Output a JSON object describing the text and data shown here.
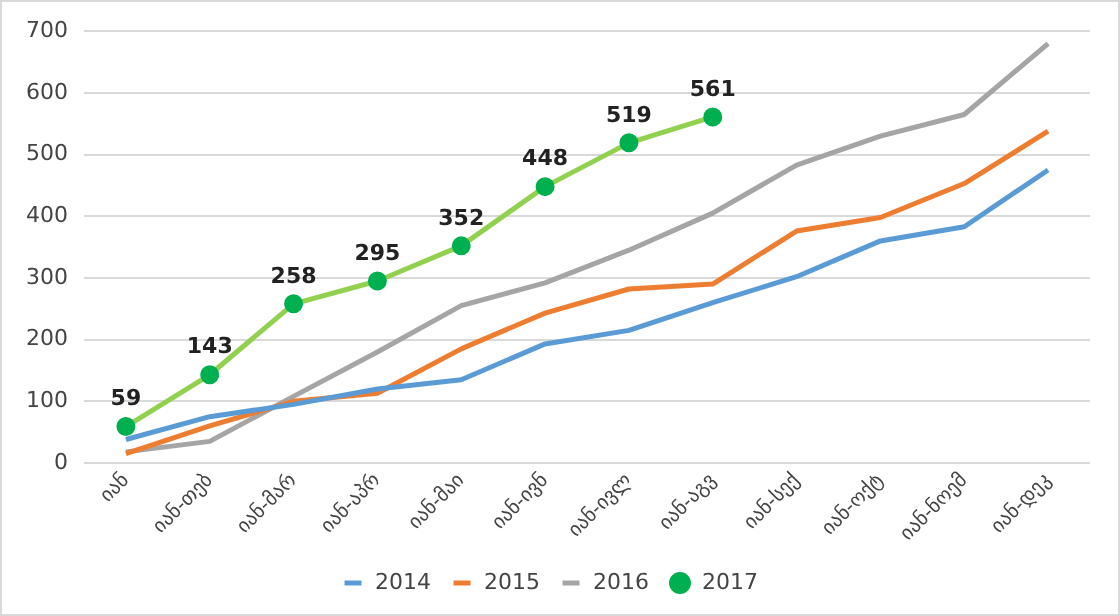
{
  "chart_data": {
    "type": "line",
    "categories": [
      "იან",
      "იან-თებ",
      "იან-მარ",
      "იან-აპრ",
      "იან-მაი",
      "იან-ივნ",
      "იან-ივლ",
      "იან-აგვ",
      "იან-სექ",
      "იან-ოქტ",
      "იან-ნოემ",
      "იან-დეკ"
    ],
    "series": [
      {
        "name": "2014",
        "color": "#5b9bd5",
        "values": [
          38,
          75,
          95,
          120,
          135,
          193,
          215,
          260,
          302,
          360,
          383,
          475
        ]
      },
      {
        "name": "2015",
        "color": "#ed7d31",
        "values": [
          15,
          60,
          100,
          113,
          185,
          243,
          282,
          290,
          376,
          398,
          453,
          538
        ]
      },
      {
        "name": "2016",
        "color": "#a5a5a5",
        "values": [
          18,
          35,
          108,
          180,
          255,
          292,
          345,
          405,
          483,
          530,
          565,
          680
        ]
      },
      {
        "name": "2017",
        "color": "#92d050",
        "marker": "circle",
        "data_labels": true,
        "values": [
          59,
          143,
          258,
          295,
          352,
          448,
          519,
          561,
          null,
          null,
          null,
          null
        ]
      }
    ],
    "ylim": [
      0,
      700
    ],
    "yticks": [
      0,
      100,
      200,
      300,
      400,
      500,
      600,
      700
    ],
    "grid": "y",
    "legend": "bottom"
  }
}
